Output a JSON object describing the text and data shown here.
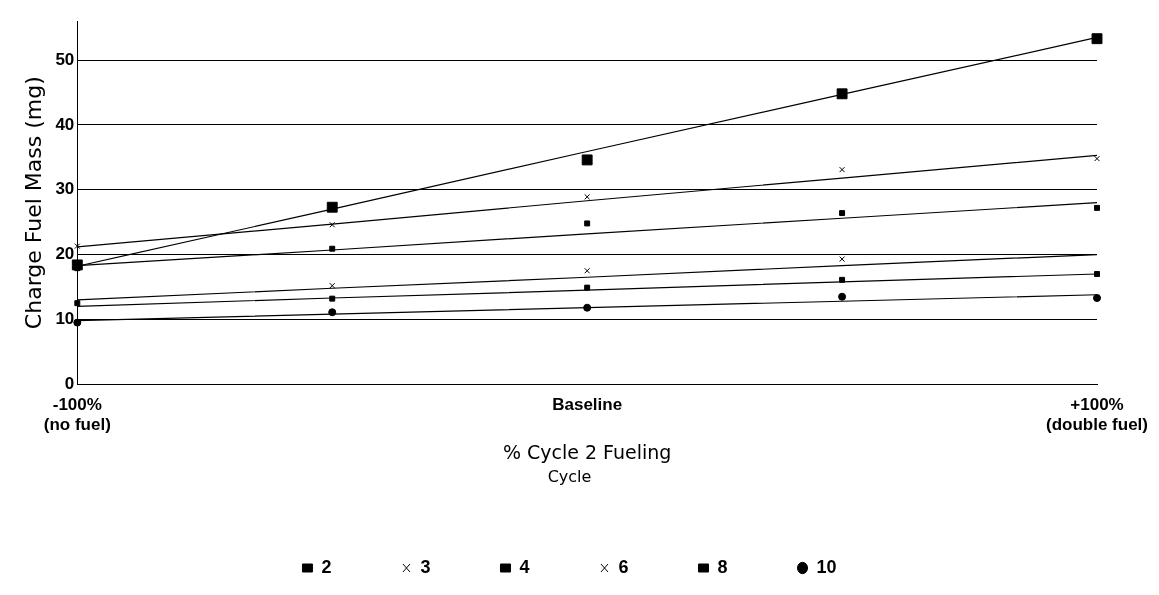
{
  "chart_data": {
    "type": "scatter",
    "xlabel": "% Cycle 2 Fueling",
    "ylabel": "Charge Fuel Mass (mg)",
    "legend_title": "Cycle",
    "legend": "bottom",
    "grid": "y",
    "x": [
      -100,
      -50,
      0,
      50,
      100
    ],
    "xlim": [
      -100,
      100
    ],
    "xticks": [
      {
        "value": -100,
        "label": "-100%\n(no fuel)"
      },
      {
        "value": 0,
        "label": "Baseline"
      },
      {
        "value": 100,
        "label": "+100%\n(double fuel)"
      }
    ],
    "ylim": [
      0,
      56
    ],
    "yticks": [
      0,
      10,
      20,
      30,
      40,
      50
    ],
    "series": [
      {
        "name": "2",
        "color": "#000000",
        "marker": "square",
        "values": [
          18.4,
          27.3,
          34.6,
          44.8,
          53.3
        ]
      },
      {
        "name": "3",
        "color": "#000000",
        "marker": "cross",
        "values": [
          21.3,
          24.6,
          28.9,
          33.1,
          34.8
        ]
      },
      {
        "name": "4",
        "color": "#000000",
        "marker": "square",
        "values": [
          17.9,
          20.9,
          24.8,
          26.4,
          27.2
        ]
      },
      {
        "name": "6",
        "color": "#000000",
        "marker": "cross",
        "values": [
          null,
          15.2,
          17.5,
          19.3,
          null
        ]
      },
      {
        "name": "8",
        "color": "#000000",
        "marker": "square",
        "values": [
          12.5,
          13.2,
          14.9,
          16.1,
          17.0
        ]
      },
      {
        "name": "10",
        "color": "#000000",
        "marker": "circle",
        "values": [
          9.5,
          11.1,
          11.8,
          13.5,
          13.3
        ]
      },
      {
        "type": "line",
        "color": "#000000",
        "marker": "none",
        "values": [
          18.2,
          27.0,
          35.9,
          44.7,
          53.5
        ]
      },
      {
        "type": "line",
        "color": "#000000",
        "marker": "none",
        "values": [
          21.2,
          24.7,
          28.3,
          31.8,
          35.3
        ]
      },
      {
        "type": "line",
        "color": "#000000",
        "marker": "none",
        "values": [
          18.3,
          20.7,
          23.2,
          25.6,
          28.0
        ]
      },
      {
        "type": "line",
        "color": "#000000",
        "marker": "none",
        "values": [
          13.0,
          14.8,
          16.5,
          18.3,
          20.0
        ]
      },
      {
        "type": "line",
        "color": "#000000",
        "marker": "none",
        "values": [
          12.0,
          13.3,
          14.5,
          15.8,
          17.0
        ]
      },
      {
        "type": "line",
        "color": "#000000",
        "marker": "none",
        "values": [
          9.8,
          10.8,
          11.8,
          12.8,
          13.8
        ]
      }
    ]
  }
}
